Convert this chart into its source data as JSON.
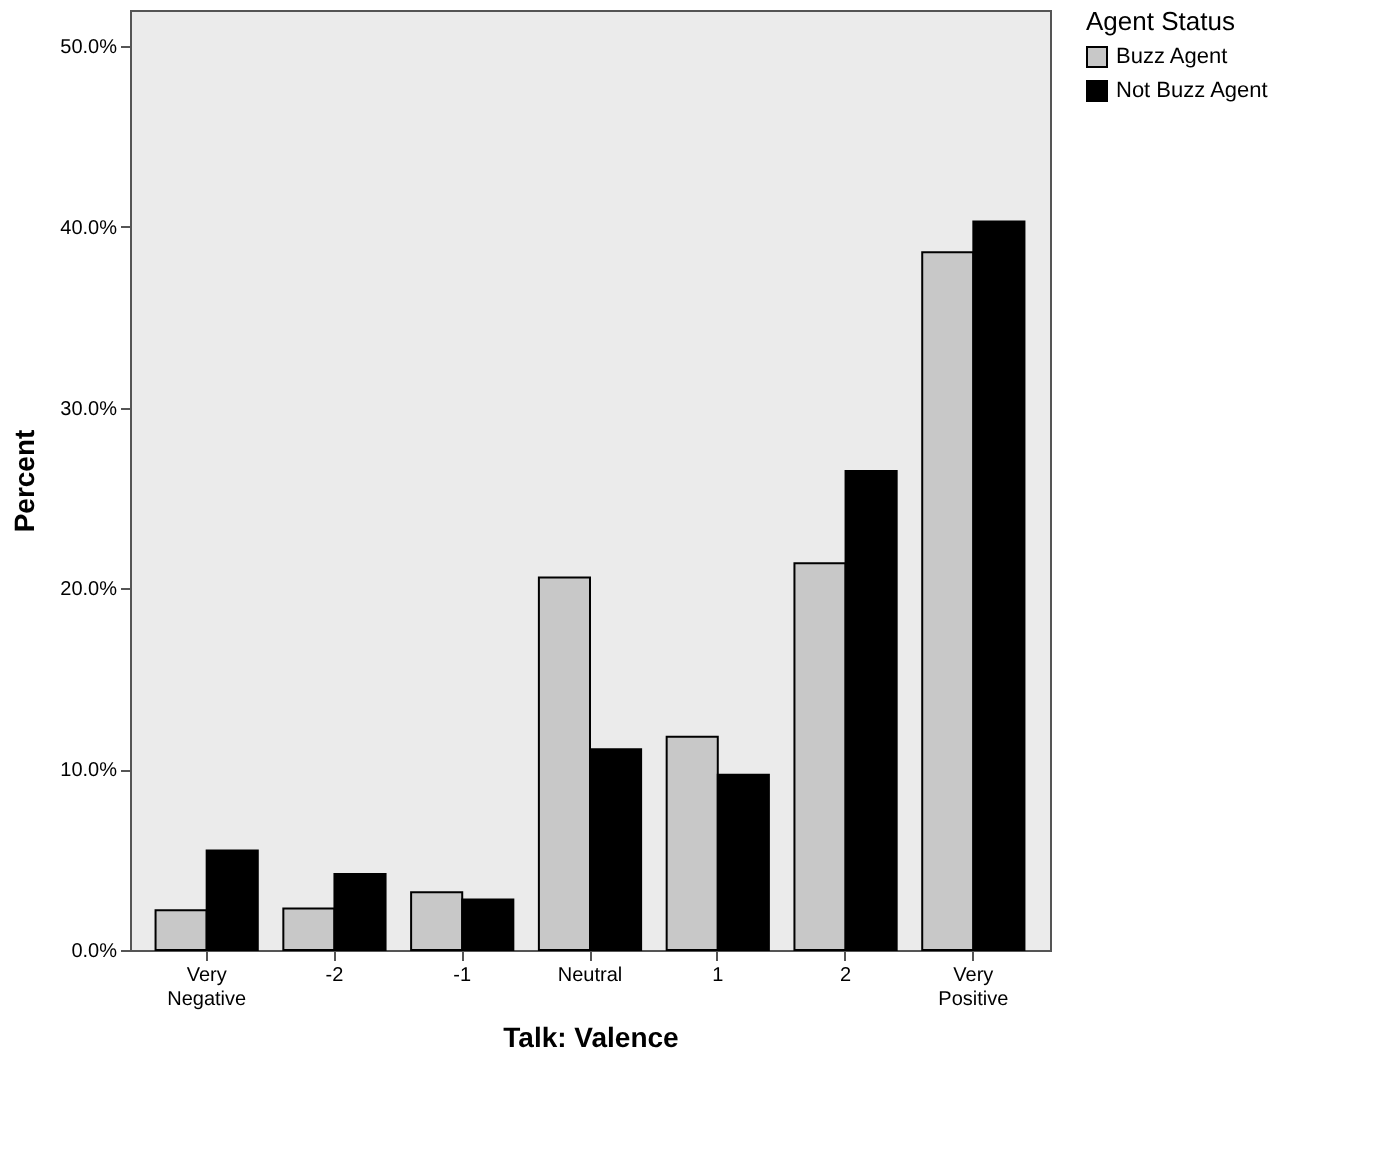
{
  "chart_data": {
    "type": "bar",
    "xlabel": "Talk: Valence",
    "ylabel": "Percent",
    "legend_title": "Agent Status",
    "categories": [
      "Very Negative",
      "-2",
      "-1",
      "Neutral",
      "1",
      "2",
      "Very Positive"
    ],
    "series": [
      {
        "name": "Buzz Agent",
        "color": "#c8c8c8",
        "values": [
          2.2,
          2.3,
          3.2,
          20.6,
          11.8,
          21.4,
          38.6
        ]
      },
      {
        "name": "Not Buzz Agent",
        "color": "#000000",
        "values": [
          5.5,
          4.2,
          2.8,
          11.1,
          9.7,
          26.5,
          40.3
        ]
      }
    ],
    "ylim": [
      0,
      52
    ],
    "yticks": [
      {
        "value": 0,
        "label": "0.0%"
      },
      {
        "value": 10,
        "label": "10.0%"
      },
      {
        "value": 20,
        "label": "20.0%"
      },
      {
        "value": 30,
        "label": "30.0%"
      },
      {
        "value": 40,
        "label": "40.0%"
      },
      {
        "value": 50,
        "label": "50.0%"
      }
    ],
    "grid": false,
    "legend": "top right"
  }
}
